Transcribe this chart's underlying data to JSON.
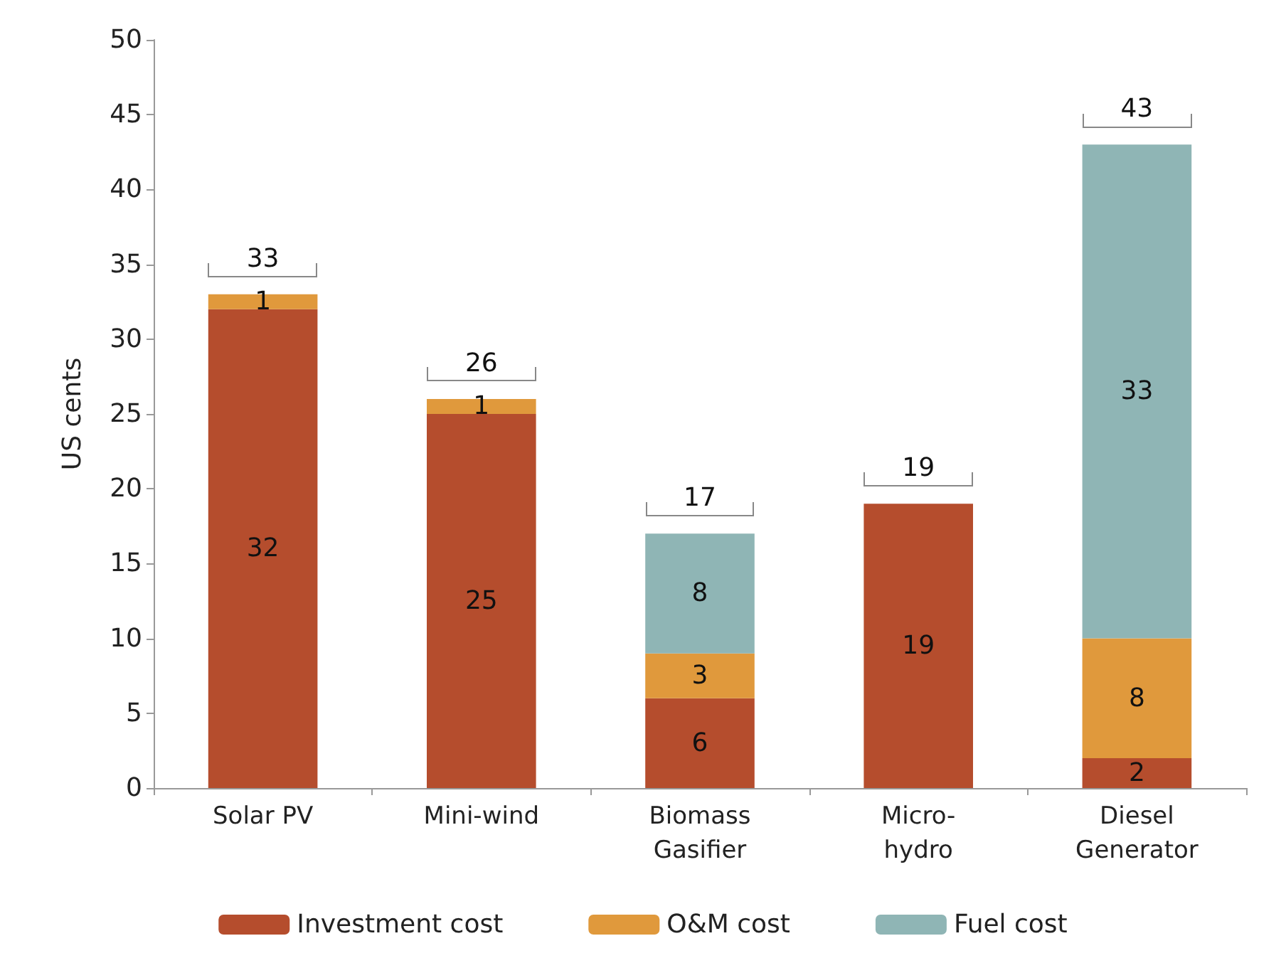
{
  "chart_data": {
    "type": "bar",
    "stacked": true,
    "ylabel": "US cents",
    "categories": [
      "Solar PV",
      "Mini-wind",
      "Biomass\nGasifier",
      "Micro-\nhydro",
      "Diesel\nGenerator"
    ],
    "series": [
      {
        "name": "Investment cost",
        "color": "#b54d2d",
        "values": [
          32,
          25,
          6,
          19,
          2
        ]
      },
      {
        "name": "O&M cost",
        "color": "#e0993c",
        "values": [
          1,
          1,
          3,
          null,
          8
        ]
      },
      {
        "name": "Fuel cost",
        "color": "#8fb5b5",
        "values": [
          null,
          null,
          8,
          null,
          33
        ]
      }
    ],
    "data_labels": true,
    "totals": [
      "33",
      "26",
      "17",
      "19",
      "43"
    ],
    "ylim": [
      0,
      50
    ],
    "yticks": [
      0,
      5,
      10,
      15,
      20,
      25,
      30,
      35,
      40,
      45,
      50
    ],
    "grid": false,
    "legend": "bottom"
  }
}
